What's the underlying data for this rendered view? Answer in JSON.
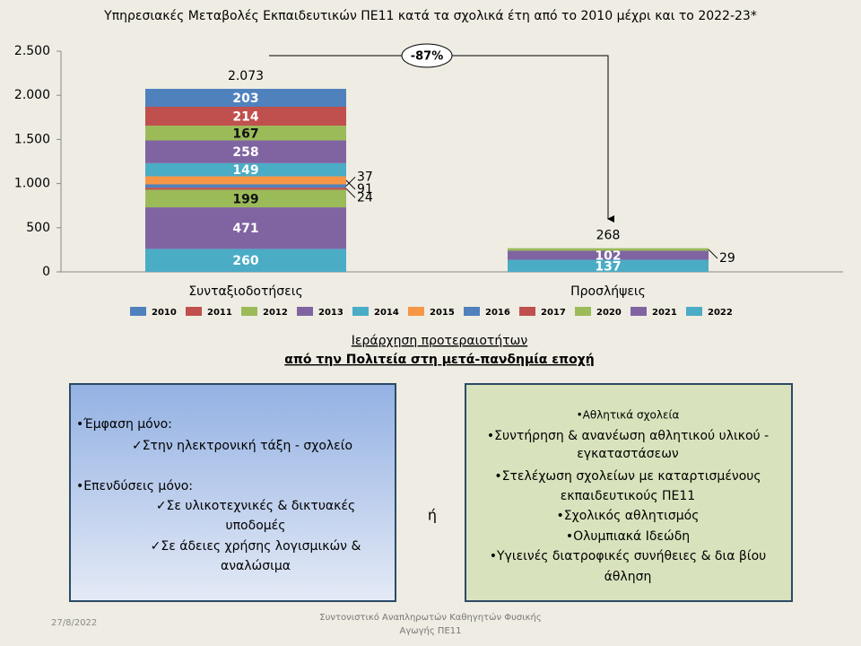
{
  "chart_data": {
    "type": "stacked_bar",
    "title": "Υπηρεσιακές Μεταβολές Εκπαιδευτικών ΠΕ11 κατά τα σχολικά έτη από το 2010 μέχρι και το 2022-23*",
    "categories": [
      "Συνταξιοδοτήσεις",
      "Προσλήψεις"
    ],
    "series": [
      {
        "name": "2010",
        "color": "#4f81bd",
        "values": [
          203,
          null
        ]
      },
      {
        "name": "2011",
        "color": "#c0504d",
        "values": [
          214,
          null
        ]
      },
      {
        "name": "2012",
        "color": "#9bbb59",
        "values": [
          167,
          null
        ]
      },
      {
        "name": "2013",
        "color": "#8064a2",
        "values": [
          258,
          null
        ]
      },
      {
        "name": "2014",
        "color": "#4bacc6",
        "values": [
          149,
          null
        ]
      },
      {
        "name": "2015",
        "color": "#f79646",
        "values": [
          91,
          null
        ]
      },
      {
        "name": "2016",
        "color": "#4f81bd",
        "values": [
          37,
          null
        ]
      },
      {
        "name": "2017",
        "color": "#c0504d",
        "values": [
          24,
          null
        ]
      },
      {
        "name": "2020",
        "color": "#9bbb59",
        "values": [
          199,
          29
        ]
      },
      {
        "name": "2021",
        "color": "#8064a2",
        "values": [
          471,
          102
        ]
      },
      {
        "name": "2022",
        "color": "#4bacc6",
        "values": [
          260,
          137
        ]
      }
    ],
    "totals": [
      {
        "value": 2073,
        "label": "2.073"
      },
      268
    ],
    "annotation": "-87%",
    "ylim": [
      0,
      2500
    ],
    "yticks": [
      0,
      500,
      {
        "value": 1000,
        "label": "1.000"
      },
      {
        "value": 1500,
        "label": "1.500"
      },
      {
        "value": 2000,
        "label": "2.000"
      },
      {
        "value": 2500,
        "label": "2.500"
      }
    ],
    "legend": "bottom"
  },
  "slide": {
    "heading": [
      "Ιεράρχηση προτεραιοτήτων",
      "από την Πολιτεία στη μετά-πανδημία εποχή"
    ],
    "left_box": [
      "•Έμφαση μόνο:",
      "✓Στην ηλεκτρονική τάξη - σχολείο",
      "•Επενδύσεις μόνο:",
      "✓Σε υλικοτεχνικές & δικτυακές",
      "υποδομές",
      "✓Σε άδειες χρήσης λογισμικών &",
      "αναλώσιμα"
    ],
    "separator": "ή",
    "right_box": [
      "•Αθλητικά σχολεία",
      "•Συντήρηση & ανανέωση αθλητικού υλικού -",
      "εγκαταστάσεων",
      "•Στελέχωση σχολείων με καταρτισμένους",
      "εκπαιδευτικούς  ΠΕ11",
      "•Σχολικός αθλητισμός",
      "•Ολυμπιακά Ιδεώδη",
      "•Υγιεινές διατροφικές συνήθειες & δια βίου",
      "άθληση"
    ],
    "footer_date": "27/8/2022",
    "footer_text": [
      "Συντονιστικό Αναπληρωτών  Καθηγητών Φυσικής",
      "Αγωγής ΠΕ11"
    ]
  }
}
